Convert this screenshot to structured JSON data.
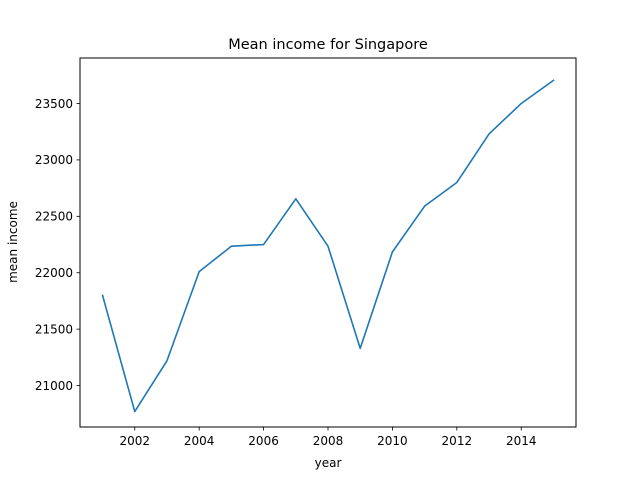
{
  "chart_data": {
    "type": "line",
    "title": "Mean income for Singapore",
    "xlabel": "year",
    "ylabel": "mean income",
    "xlim": [
      2000.3,
      2015.7
    ],
    "ylim": [
      20633,
      23903
    ],
    "xticks": [
      2002,
      2004,
      2006,
      2008,
      2010,
      2012,
      2014
    ],
    "yticks": [
      21000,
      21500,
      22000,
      22500,
      23000,
      23500
    ],
    "grid": false,
    "series": [
      {
        "color": "#1f77b4",
        "x": [
          2001,
          2002,
          2003,
          2004,
          2005,
          2006,
          2007,
          2008,
          2009,
          2010,
          2011,
          2012,
          2013,
          2014,
          2015
        ],
        "y": [
          21800,
          20770,
          21220,
          22010,
          22235,
          22250,
          22655,
          22235,
          21330,
          22185,
          22590,
          22800,
          23230,
          23500,
          23705
        ]
      }
    ]
  }
}
